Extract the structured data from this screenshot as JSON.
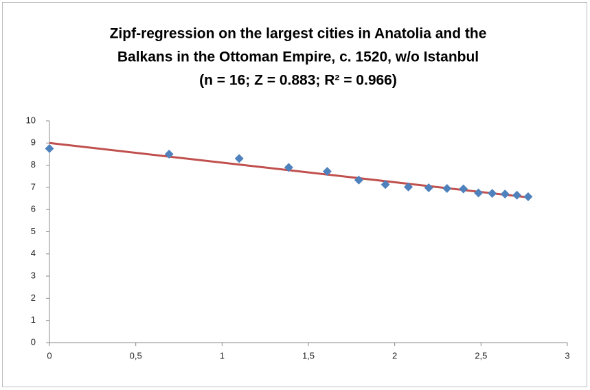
{
  "chart_data": {
    "type": "scatter",
    "title": [
      "Zipf-regression on the largest cities in Anatolia and the",
      "Balkans in the Ottoman Empire, c. 1520, w/o Istanbul",
      "(n = 16; Z = 0.883; R² = 0.966)"
    ],
    "x": [
      0,
      0.693,
      1.099,
      1.386,
      1.609,
      1.792,
      1.946,
      2.079,
      2.197,
      2.303,
      2.398,
      2.485,
      2.565,
      2.639,
      2.708,
      2.773
    ],
    "values": [
      8.75,
      8.5,
      8.3,
      7.9,
      7.72,
      7.33,
      7.13,
      7.02,
      6.98,
      6.95,
      6.93,
      6.75,
      6.73,
      6.7,
      6.65,
      6.58
    ],
    "color": "#4f81bd",
    "trendline": {
      "x": [
        0,
        2.773
      ],
      "values": [
        9.0,
        6.55
      ],
      "color": "#c0504d"
    },
    "xlim": [
      0,
      3
    ],
    "xticks": [
      0,
      {
        "value": 0.5,
        "label": "0,5"
      },
      1,
      {
        "value": 1.5,
        "label": "1,5"
      },
      2,
      {
        "value": 2.5,
        "label": "2,5"
      },
      3
    ],
    "ylim": [
      0,
      10
    ],
    "yticks": [
      0,
      1,
      2,
      3,
      4,
      5,
      6,
      7,
      8,
      9,
      10
    ],
    "grid": false
  }
}
